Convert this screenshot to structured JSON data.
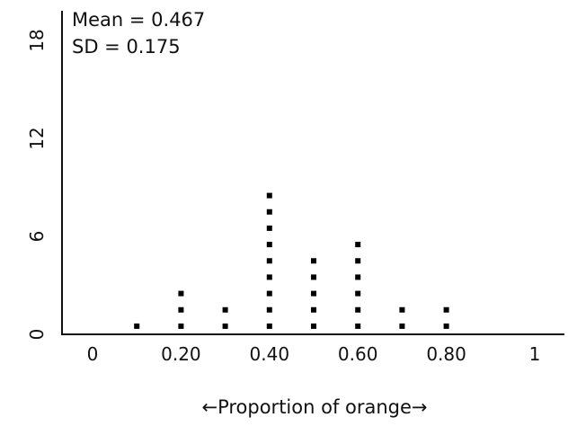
{
  "chart_data": {
    "type": "dotplot",
    "xlabel": "←Proportion of orange→",
    "ylabel": "",
    "xlim": [
      0,
      1
    ],
    "ylim": [
      0,
      18
    ],
    "x_ticks": [
      "0",
      "0.20",
      "0.40",
      "0.60",
      "0.80",
      "1"
    ],
    "y_ticks": [
      "0",
      "6",
      "12",
      "18"
    ],
    "annotations": [
      "Mean = 0.467",
      "SD = 0.175"
    ],
    "points": [
      {
        "x": 0.1,
        "count": 1
      },
      {
        "x": 0.2,
        "count": 3
      },
      {
        "x": 0.3,
        "count": 2
      },
      {
        "x": 0.4,
        "count": 9
      },
      {
        "x": 0.5,
        "count": 5
      },
      {
        "x": 0.6,
        "count": 6
      },
      {
        "x": 0.7,
        "count": 2
      },
      {
        "x": 0.8,
        "count": 2
      }
    ],
    "grid": false
  }
}
